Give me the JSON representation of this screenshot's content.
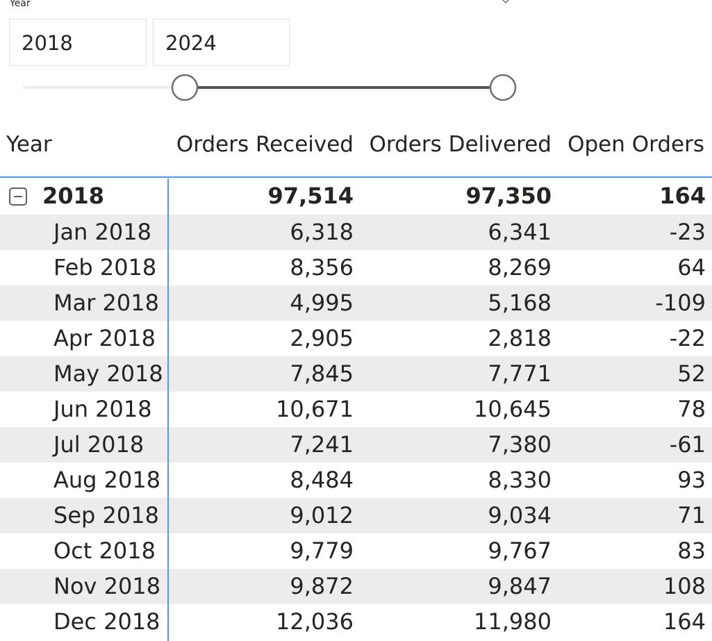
{
  "slicer": {
    "title": "Year",
    "from_value": "2018",
    "to_value": "2024",
    "range_start_fraction": 0,
    "range_end_fraction": 1
  },
  "matrix": {
    "headers": [
      "Year",
      "Orders Received",
      "Orders Delivered",
      "Open Orders"
    ],
    "total_row": {
      "label": "2018",
      "received": "97,514",
      "delivered": "97,350",
      "open": "164"
    },
    "rows": [
      {
        "label": "Jan 2018",
        "received": "6,318",
        "delivered": "6,341",
        "open": "-23"
      },
      {
        "label": "Feb 2018",
        "received": "8,356",
        "delivered": "8,269",
        "open": "64"
      },
      {
        "label": "Mar 2018",
        "received": "4,995",
        "delivered": "5,168",
        "open": "-109"
      },
      {
        "label": "Apr 2018",
        "received": "2,905",
        "delivered": "2,818",
        "open": "-22"
      },
      {
        "label": "May 2018",
        "received": "7,845",
        "delivered": "7,771",
        "open": "52"
      },
      {
        "label": "Jun 2018",
        "received": "10,671",
        "delivered": "10,645",
        "open": "78"
      },
      {
        "label": "Jul 2018",
        "received": "7,241",
        "delivered": "7,380",
        "open": "-61"
      },
      {
        "label": "Aug 2018",
        "received": "8,484",
        "delivered": "8,330",
        "open": "93"
      },
      {
        "label": "Sep 2018",
        "received": "9,012",
        "delivered": "9,034",
        "open": "71"
      },
      {
        "label": "Oct 2018",
        "received": "9,779",
        "delivered": "9,767",
        "open": "83"
      },
      {
        "label": "Nov 2018",
        "received": "9,872",
        "delivered": "9,847",
        "open": "108"
      },
      {
        "label": "Dec 2018",
        "received": "12,036",
        "delivered": "11,980",
        "open": "164"
      }
    ]
  },
  "icons": {
    "collapse": "minus-square-icon",
    "dropdown": "chevron-down-icon"
  },
  "colors": {
    "accent_blue": "#4f9be8",
    "row_shade": "#ececec",
    "slider_track": "#555555",
    "slider_handle": "#6e6e6e"
  }
}
